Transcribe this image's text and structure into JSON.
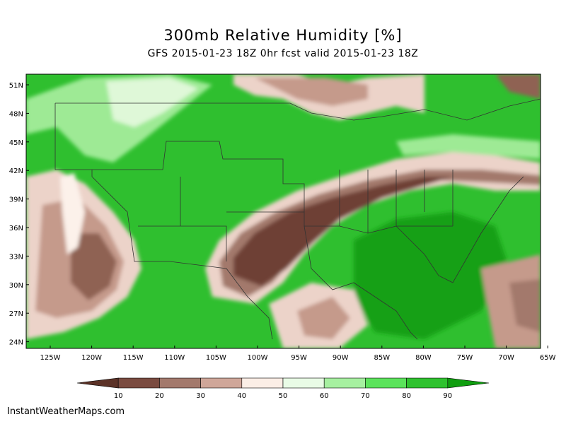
{
  "title": "300mb Relative Humidity [%]",
  "subtitle": "GFS 2015-01-23 18Z 0hr fcst valid 2015-01-23 18Z",
  "credit": "InstantWeatherMaps.com",
  "map": {
    "lat_labels": [
      "51N",
      "48N",
      "45N",
      "42N",
      "39N",
      "36N",
      "33N",
      "30N",
      "27N",
      "24N"
    ],
    "lon_labels": [
      "125W",
      "120W",
      "115W",
      "110W",
      "105W",
      "100W",
      "95W",
      "90W",
      "85W",
      "80W",
      "75W",
      "70W",
      "65W"
    ]
  },
  "legend": {
    "ticks": [
      "10",
      "20",
      "30",
      "40",
      "50",
      "60",
      "70",
      "80",
      "90"
    ],
    "colors": [
      "#5c3227",
      "#7a4b40",
      "#a3796c",
      "#cfa699",
      "#fbeee6",
      "#e9fbe6",
      "#a6f0a0",
      "#5be35b",
      "#2fc22f",
      "#0f9e0f"
    ]
  },
  "palette": {
    "dark_brown": "#6e4136",
    "brown": "#8f6253",
    "tan": "#c59a8b",
    "light_tan": "#ecd3c9",
    "cream": "#fcf1ea",
    "pale_green": "#dff8d8",
    "light_green": "#9eea95",
    "green": "#50d950",
    "deep_green": "#12a012"
  }
}
